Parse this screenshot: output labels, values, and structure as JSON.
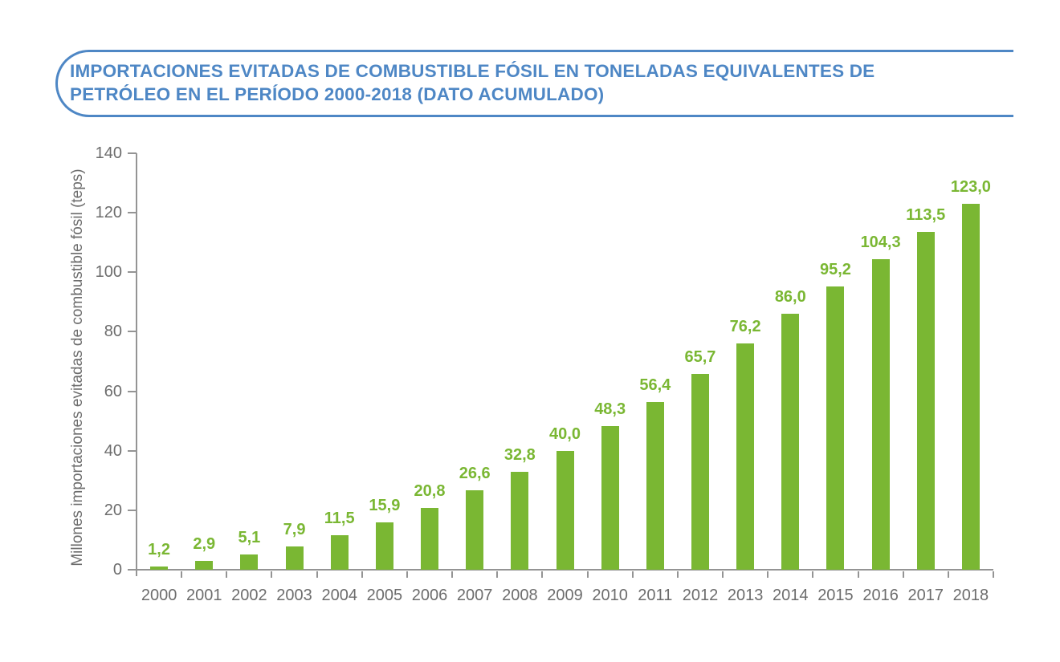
{
  "colors": {
    "accent_blue": "#4e87c5",
    "bar_green": "#7ab733",
    "axis_gray": "#949494",
    "text_gray": "#6d6d6d"
  },
  "chart_data": {
    "type": "bar",
    "title": "IMPORTACIONES EVITADAS DE COMBUSTIBLE FÓSIL EN TONELADAS EQUIVALENTES DE PETRÓLEO EN EL PERÍODO 2000-2018 (DATO ACUMULADO)",
    "xlabel": "",
    "ylabel": "Millones importaciones evitadas de combustible fósil (teps)",
    "ylim": [
      0,
      140
    ],
    "yticks": [
      0,
      20,
      40,
      60,
      80,
      100,
      120,
      140
    ],
    "grid": false,
    "legend": "none",
    "categories": [
      "2000",
      "2001",
      "2002",
      "2003",
      "2004",
      "2005",
      "2006",
      "2007",
      "2008",
      "2009",
      "2010",
      "2011",
      "2012",
      "2013",
      "2014",
      "2015",
      "2016",
      "2017",
      "2018"
    ],
    "values": [
      1.2,
      2.9,
      5.1,
      7.9,
      11.5,
      15.9,
      20.8,
      26.6,
      32.8,
      40.0,
      48.3,
      56.4,
      65.7,
      76.2,
      86.0,
      95.2,
      104.3,
      113.5,
      123.0
    ],
    "value_labels": [
      "1,2",
      "2,9",
      "5,1",
      "7,9",
      "11,5",
      "15,9",
      "20,8",
      "26,6",
      "32,8",
      "40,0",
      "48,3",
      "56,4",
      "65,7",
      "76,2",
      "86,0",
      "95,2",
      "104,3",
      "113,5",
      "123,0"
    ]
  }
}
